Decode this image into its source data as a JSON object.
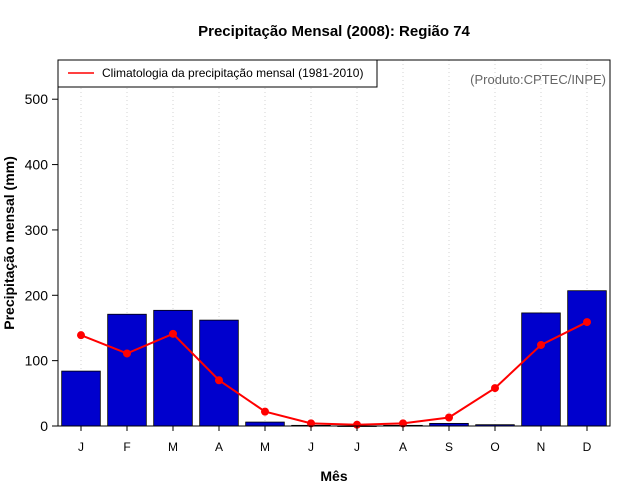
{
  "chart_data": {
    "type": "bar",
    "title": "Precipitação Mensal (2008): Região 74",
    "xlabel": "Mês",
    "ylabel": "Precipitação mensal (mm)",
    "categories": [
      "J",
      "F",
      "M",
      "A",
      "M",
      "J",
      "J",
      "A",
      "S",
      "O",
      "N",
      "D"
    ],
    "ylim": [
      0,
      560
    ],
    "yticks": [
      0,
      100,
      200,
      300,
      400,
      500
    ],
    "grid": "vertical dotted",
    "series": [
      {
        "name": "Precipitação mensal (2008)",
        "type": "bar",
        "color": "#0000cd",
        "values": [
          84,
          171,
          177,
          162,
          6,
          1,
          0,
          1,
          4,
          2,
          173,
          207
        ]
      },
      {
        "name": "Climatologia da precipitação mensal (1981-2010)",
        "type": "line",
        "color": "#ff0000",
        "values": [
          139,
          111,
          141,
          70,
          22,
          4,
          2,
          4,
          13,
          58,
          124,
          159
        ]
      }
    ],
    "legend": {
      "position": "top-left",
      "label": "Climatologia da precipitação mensal (1981-2010)"
    },
    "annotation": "(Produto:CPTEC/INPE)"
  }
}
